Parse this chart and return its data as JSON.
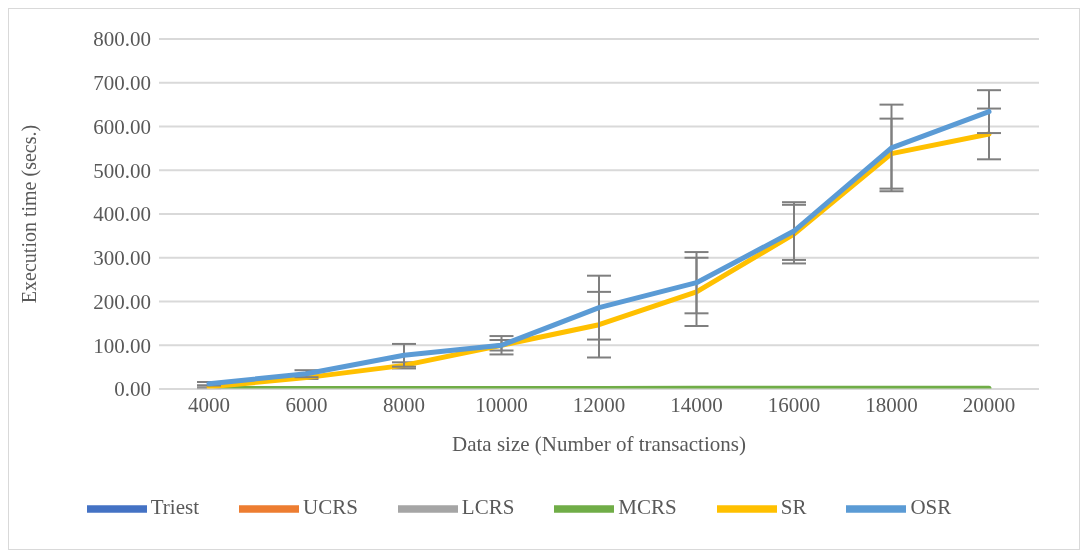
{
  "chart_data": {
    "type": "line",
    "xlabel": "Data size (Number of transactions)",
    "ylabel": "Execution time (secs.)",
    "categories": [
      "4000",
      "6000",
      "8000",
      "10000",
      "12000",
      "14000",
      "16000",
      "18000",
      "20000"
    ],
    "ylim": [
      0,
      800
    ],
    "yticks": [
      {
        "value": 0,
        "label": "0.00"
      },
      {
        "value": 100,
        "label": "100.00"
      },
      {
        "value": 200,
        "label": "200.00"
      },
      {
        "value": 300,
        "label": "300.00"
      },
      {
        "value": 400,
        "label": "400.00"
      },
      {
        "value": 500,
        "label": "500.00"
      },
      {
        "value": 600,
        "label": "600.00"
      },
      {
        "value": 700,
        "label": "700.00"
      },
      {
        "value": 800,
        "label": "800.00"
      }
    ],
    "grid": "y",
    "legend": "bottom",
    "marker": "none",
    "line_style": "solid",
    "series": [
      {
        "name": "Triest",
        "color": "#4472c4",
        "values": [
          null,
          null,
          null,
          null,
          null,
          null,
          null,
          null,
          null
        ]
      },
      {
        "name": "UCRS",
        "color": "#ed7d31",
        "values": [
          null,
          null,
          null,
          null,
          null,
          null,
          null,
          null,
          null
        ]
      },
      {
        "name": "LCRS",
        "color": "#a5a5a5",
        "values": [
          null,
          null,
          null,
          null,
          null,
          null,
          null,
          null,
          null
        ]
      },
      {
        "name": "MCRS",
        "color": "#70ad47",
        "values": [
          1,
          1,
          1,
          1,
          1,
          2,
          2,
          2,
          2
        ]
      },
      {
        "name": "SR",
        "color": "#ffc000",
        "values": [
          5,
          26,
          54,
          100,
          147,
          222,
          354,
          538,
          583
        ],
        "errors": [
          3,
          3,
          7,
          12,
          75,
          78,
          67,
          80,
          58
        ]
      },
      {
        "name": "OSR",
        "color": "#5b9bd5",
        "values": [
          12,
          35,
          77,
          100,
          186,
          243,
          361,
          551,
          634
        ],
        "errors": [
          4,
          8,
          26,
          21,
          73,
          70,
          66,
          99,
          49
        ]
      }
    ]
  }
}
